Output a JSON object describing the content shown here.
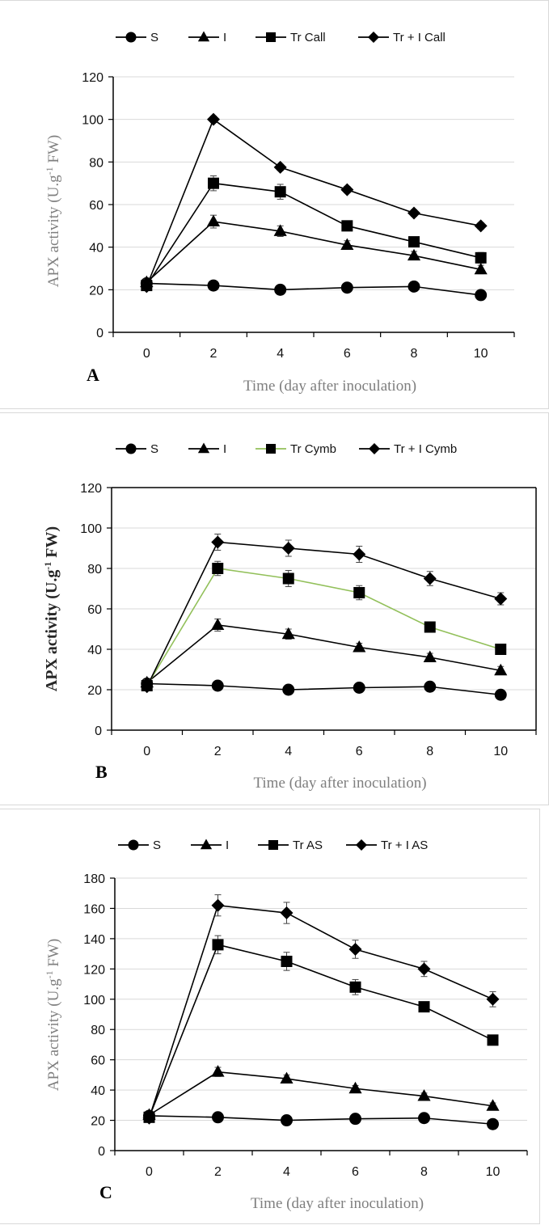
{
  "chart_data": [
    {
      "type": "line",
      "panel_label": "A",
      "xlabel": "Time (day after inoculation)",
      "ylabel": "APX activity (U.g-1 FW)",
      "ylabel_parts": {
        "before": "APX activity (U.g",
        "sup": "-1",
        "after": " FW)"
      },
      "x": [
        0,
        2,
        4,
        6,
        8,
        10
      ],
      "xticks": [
        "0",
        "2",
        "4",
        "6",
        "8",
        "10"
      ],
      "yticks": [
        "0",
        "20",
        "40",
        "60",
        "80",
        "100",
        "120"
      ],
      "ylim": [
        0,
        120
      ],
      "grid": true,
      "legend_position": "top",
      "series": [
        {
          "name": "S",
          "marker": "circle",
          "color": "#000000",
          "values": [
            23,
            22,
            20,
            21,
            21.5,
            17.5
          ],
          "errors": [
            1.5,
            1.5,
            1.5,
            1.5,
            1.5,
            1.5
          ]
        },
        {
          "name": "I",
          "marker": "triangle",
          "color": "#000000",
          "values": [
            23.5,
            52,
            47.5,
            41,
            36,
            29.5
          ],
          "errors": [
            1.5,
            3,
            2.5,
            2,
            2,
            2
          ]
        },
        {
          "name": "Tr Call",
          "marker": "square",
          "color": "#000000",
          "values": [
            22,
            70,
            66,
            50,
            42.5,
            35
          ],
          "errors": [
            1.5,
            3.5,
            3.5,
            2,
            2,
            2.5
          ]
        },
        {
          "name": "Tr + I Call",
          "marker": "diamond",
          "color": "#000000",
          "values": [
            21.5,
            100,
            77.5,
            67,
            56,
            50
          ],
          "errors": [
            1.5,
            1.5,
            1.5,
            1.5,
            1.5,
            1.5
          ]
        }
      ]
    },
    {
      "type": "line",
      "panel_label": "B",
      "xlabel": "Time (day after inoculation)",
      "ylabel": "APX activity (U.g-1 FW)",
      "ylabel_parts": {
        "before": "APX activity (U.g",
        "sup": "-1",
        "after": " FW)"
      },
      "x": [
        0,
        2,
        4,
        6,
        8,
        10
      ],
      "xticks": [
        "0",
        "2",
        "4",
        "6",
        "8",
        "10"
      ],
      "yticks": [
        "0",
        "20",
        "40",
        "60",
        "80",
        "100",
        "120"
      ],
      "ylim": [
        0,
        120
      ],
      "grid": true,
      "legend_position": "top",
      "series": [
        {
          "name": "S",
          "marker": "circle",
          "color": "#000000",
          "values": [
            23,
            22,
            20,
            21,
            21.5,
            17.5
          ],
          "errors": [
            1.5,
            1.5,
            1.5,
            1.5,
            1.5,
            1.5
          ]
        },
        {
          "name": "I",
          "marker": "triangle",
          "color": "#000000",
          "values": [
            23.5,
            52,
            47.5,
            41,
            36,
            29.5
          ],
          "errors": [
            1.5,
            3,
            2.5,
            2,
            2,
            2
          ]
        },
        {
          "name": "Tr Cymb",
          "marker": "square",
          "color": "#92c05a",
          "values": [
            22,
            80,
            75,
            68,
            51,
            40
          ],
          "errors": [
            1.5,
            3.5,
            4,
            3.5,
            2,
            1.5
          ]
        },
        {
          "name": "Tr + I Cymb",
          "marker": "diamond",
          "color": "#000000",
          "values": [
            21.5,
            93,
            90,
            87,
            75,
            65
          ],
          "errors": [
            1.5,
            4,
            4,
            4,
            3.5,
            3
          ]
        }
      ]
    },
    {
      "type": "line",
      "panel_label": "C",
      "xlabel": "Time (day after inoculation)",
      "ylabel": "APX activity (U.g-1 FW)",
      "ylabel_parts": {
        "before": "APX activity (U.g",
        "sup": "-1",
        "after": " FW)"
      },
      "x": [
        0,
        2,
        4,
        6,
        8,
        10
      ],
      "xticks": [
        "0",
        "2",
        "4",
        "6",
        "8",
        "10"
      ],
      "yticks": [
        "0",
        "20",
        "40",
        "60",
        "80",
        "100",
        "120",
        "140",
        "160",
        "180"
      ],
      "ylim": [
        0,
        180
      ],
      "grid": true,
      "legend_position": "top",
      "series": [
        {
          "name": "S",
          "marker": "circle",
          "color": "#000000",
          "values": [
            23,
            22,
            20,
            21,
            21.5,
            17.5
          ],
          "errors": [
            1.5,
            1.5,
            1.5,
            1.5,
            1.5,
            1.5
          ]
        },
        {
          "name": "I",
          "marker": "triangle",
          "color": "#000000",
          "values": [
            23.5,
            52,
            47.5,
            41,
            36,
            29.5
          ],
          "errors": [
            1.5,
            3,
            2.5,
            2,
            2,
            2
          ]
        },
        {
          "name": "Tr AS",
          "marker": "square",
          "color": "#000000",
          "values": [
            22,
            136,
            125,
            108,
            95,
            73
          ],
          "errors": [
            1.5,
            6,
            6,
            5,
            3,
            3
          ]
        },
        {
          "name": "Tr + I AS",
          "marker": "diamond",
          "color": "#000000",
          "values": [
            21.5,
            162,
            157,
            133,
            120,
            100
          ],
          "errors": [
            1.5,
            7,
            7,
            6,
            5,
            5
          ]
        }
      ]
    }
  ]
}
